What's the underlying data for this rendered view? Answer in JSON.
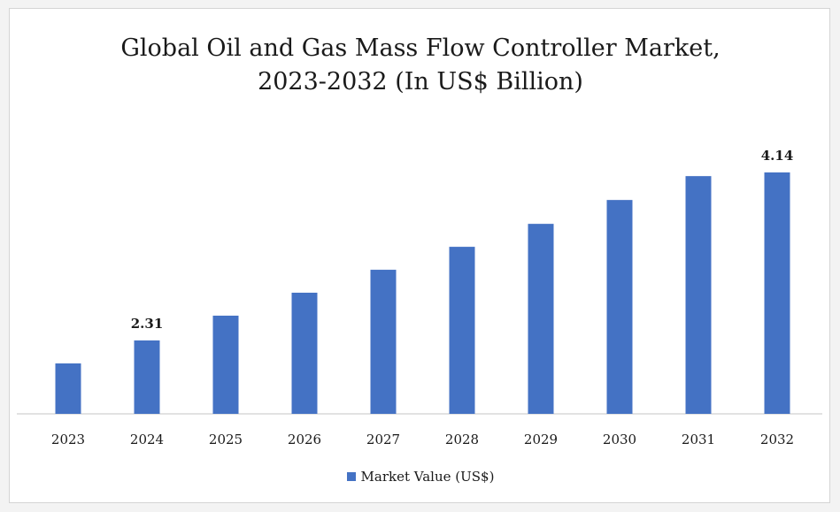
{
  "colors": {
    "bar": "#4472c4",
    "axis": "#d9d9d9"
  },
  "chart_data": {
    "type": "bar",
    "title_lines": [
      "Global Oil and Gas Mass Flow Controller Market,",
      "2023-2032 (In US$ Billion)"
    ],
    "categories": [
      "2023",
      "2024",
      "2025",
      "2026",
      "2027",
      "2028",
      "2029",
      "2030",
      "2031",
      "2032"
    ],
    "series": [
      {
        "name": "Market Value (US$)",
        "values": [
          2.06,
          2.31,
          2.58,
          2.83,
          3.08,
          3.33,
          3.58,
          3.84,
          4.1,
          4.14
        ],
        "data_labels": {
          "1": "2.31",
          "9": "4.14"
        }
      }
    ],
    "legend": "bottom-center",
    "grid": false
  }
}
